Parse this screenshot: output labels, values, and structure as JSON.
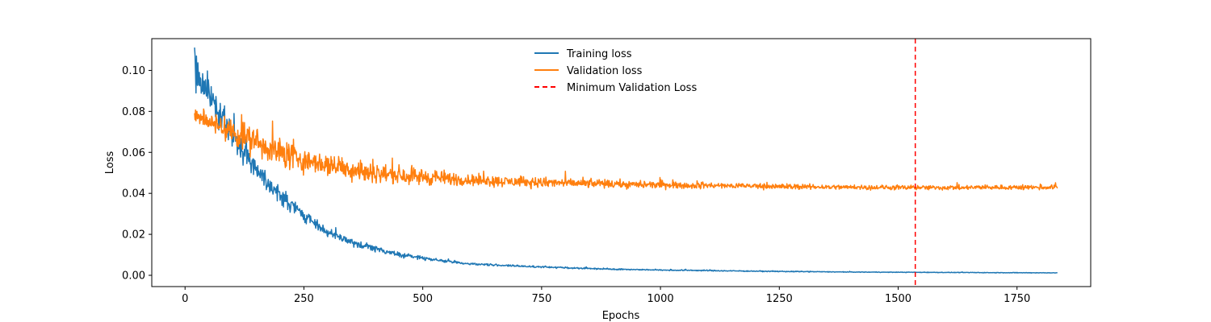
{
  "chart_data": {
    "type": "line",
    "title": "",
    "xlabel": "Epochs",
    "ylabel": "Loss",
    "xlim": [
      -70,
      1905
    ],
    "ylim": [
      -0.0055,
      0.1155
    ],
    "xticks": [
      0,
      250,
      500,
      750,
      1000,
      1250,
      1500,
      1750
    ],
    "yticks": [
      0.0,
      0.02,
      0.04,
      0.06,
      0.08,
      0.1
    ],
    "ytick_labels": [
      "0.00",
      "0.02",
      "0.04",
      "0.06",
      "0.08",
      "0.10"
    ],
    "grid": false,
    "legend_position": "top-center",
    "series": [
      {
        "name": "Training loss",
        "color": "#1f77b4",
        "style": "solid",
        "x": [
          20,
          30,
          40,
          50,
          60,
          70,
          80,
          100,
          125,
          150,
          175,
          200,
          225,
          250,
          275,
          300,
          350,
          400,
          450,
          500,
          550,
          600,
          700,
          800,
          900,
          1000,
          1100,
          1200,
          1300,
          1400,
          1500,
          1600,
          1700,
          1835
        ],
        "y": [
          0.1,
          0.095,
          0.092,
          0.089,
          0.085,
          0.081,
          0.077,
          0.068,
          0.06,
          0.052,
          0.045,
          0.039,
          0.034,
          0.029,
          0.025,
          0.021,
          0.016,
          0.013,
          0.01,
          0.0085,
          0.0068,
          0.0056,
          0.0045,
          0.0037,
          0.003,
          0.0026,
          0.0023,
          0.002,
          0.0018,
          0.0016,
          0.0015,
          0.0014,
          0.0013,
          0.0012
        ],
        "noise": [
          0.007,
          0.006,
          0.006,
          0.006,
          0.005,
          0.005,
          0.004,
          0.004,
          0.004,
          0.003,
          0.003,
          0.003,
          0.0025,
          0.002,
          0.002,
          0.0015,
          0.0012,
          0.001,
          0.0008,
          0.0006,
          0.0005,
          0.0004,
          0.0003,
          0.0003,
          0.0002,
          0.0002,
          0.0002,
          0.00015,
          0.00015,
          0.0001,
          0.0001,
          0.0001,
          0.0001,
          0.0001
        ]
      },
      {
        "name": "Validation loss",
        "color": "#ff7f0e",
        "style": "solid",
        "x": [
          20,
          50,
          100,
          150,
          200,
          250,
          300,
          350,
          400,
          450,
          500,
          600,
          700,
          800,
          900,
          1000,
          1100,
          1200,
          1300,
          1400,
          1500,
          1536,
          1600,
          1700,
          1835
        ],
        "y": [
          0.078,
          0.075,
          0.07,
          0.065,
          0.06,
          0.056,
          0.054,
          0.052,
          0.05,
          0.049,
          0.048,
          0.0465,
          0.0455,
          0.045,
          0.0445,
          0.044,
          0.0438,
          0.0435,
          0.0432,
          0.043,
          0.0428,
          0.0427,
          0.0428,
          0.0429,
          0.043
        ],
        "noise": [
          0.003,
          0.003,
          0.005,
          0.005,
          0.005,
          0.004,
          0.004,
          0.004,
          0.003,
          0.003,
          0.003,
          0.002,
          0.0017,
          0.0015,
          0.0014,
          0.0012,
          0.001,
          0.001,
          0.0009,
          0.0008,
          0.0008,
          0.0008,
          0.0008,
          0.0008,
          0.0008
        ]
      }
    ],
    "vlines": [
      {
        "name": "Minimum Validation Loss",
        "x": 1536,
        "color": "#ff0000",
        "style": "dashed"
      }
    ]
  }
}
